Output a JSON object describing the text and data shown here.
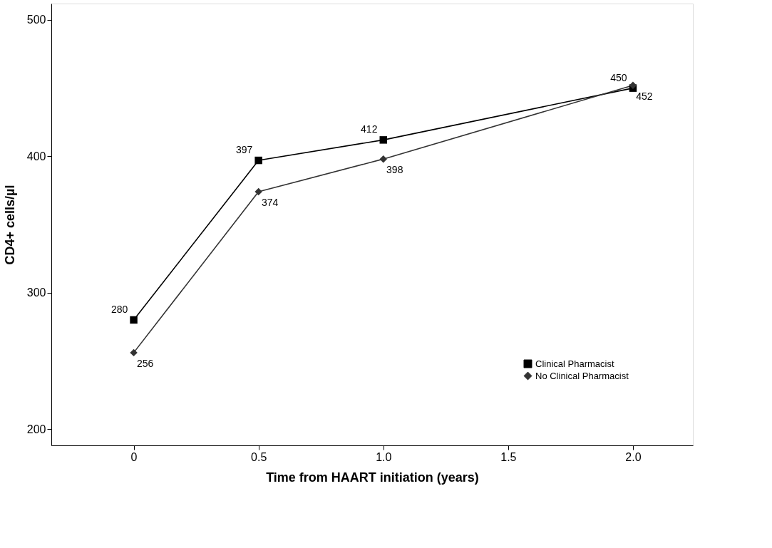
{
  "chart_data": {
    "type": "line",
    "xlabel": "Time from HAART initiation (years)",
    "ylabel": "CD4+ cells/µl",
    "x": [
      0,
      0.5,
      1.0,
      2.0
    ],
    "series": [
      {
        "name": "Clinical Pharmacist",
        "color": "#000000",
        "marker": "square",
        "values": [
          280,
          397,
          412,
          450
        ]
      },
      {
        "name": "No Clinical Pharmacist",
        "color": "#333333",
        "marker": "diamond",
        "values": [
          256,
          374,
          398,
          452
        ]
      }
    ],
    "xlim": [
      -0.33,
      2.24
    ],
    "xticks": [
      0,
      0.5,
      {
        "value": 1,
        "label": "1.0"
      },
      1.5,
      {
        "value": 2,
        "label": "2.0"
      }
    ],
    "ylim": [
      188,
      512
    ],
    "yticks": [
      200,
      300,
      400,
      500
    ],
    "data_labels": true,
    "grid": false,
    "legend": "bottom right",
    "line_style": "solid"
  }
}
